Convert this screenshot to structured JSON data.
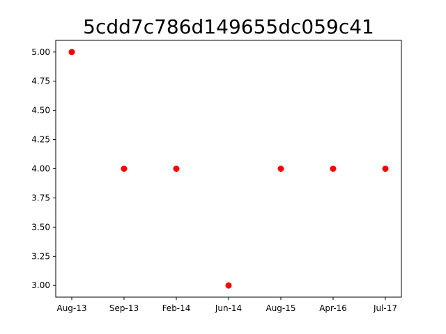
{
  "chart_data": {
    "type": "scatter",
    "title": "5cdd7c786d149655dc059c41",
    "xlabel": "",
    "ylabel": "",
    "categories": [
      "Aug-13",
      "Sep-13",
      "Feb-14",
      "Jun-14",
      "Aug-15",
      "Apr-16",
      "Jul-17"
    ],
    "values": [
      5,
      4,
      4,
      3,
      4,
      4,
      4
    ],
    "yticks": [
      "3.00",
      "3.25",
      "3.50",
      "3.75",
      "4.00",
      "4.25",
      "4.50",
      "4.75",
      "5.00"
    ],
    "ylim": [
      2.9,
      5.1
    ],
    "grid": false,
    "legend": "none",
    "marker_color": "#ff0000"
  }
}
